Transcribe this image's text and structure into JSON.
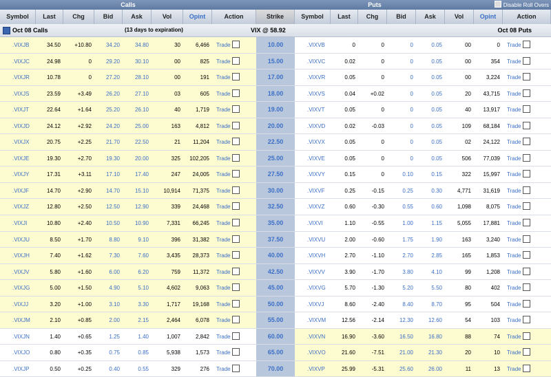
{
  "topbar": {
    "calls": "Calls",
    "puts": "Puts",
    "roll_label": "Disable Roll Overs"
  },
  "headers": {
    "calls": [
      "Symbol",
      "Last",
      "Chg",
      "Bid",
      "Ask",
      "Vol",
      "Opint",
      "Action"
    ],
    "strike": "Strike",
    "puts": [
      "Symbol",
      "Last",
      "Chg",
      "Bid",
      "Ask",
      "Vol",
      "Opint",
      "Action"
    ]
  },
  "banner": {
    "calls_label": "Oct 08 Calls",
    "expiration": "(13 days to expiration)",
    "underlying": "VIX @ 58.92",
    "puts_label": "Oct 08 Puts"
  },
  "trade_label": "Trade",
  "colors": {
    "in_the_money": "#fdfbd0",
    "strike_bg": "#b9c7dd",
    "link": "#3b6fc6"
  },
  "rows": [
    {
      "strike": "10.00",
      "call": [
        ".VIXJB",
        "34.50",
        "+10.80",
        "34.20",
        "34.80",
        "30",
        "6,466"
      ],
      "put": [
        ".VIXVB",
        "0",
        "0",
        "0",
        "0.05",
        "00",
        "0"
      ]
    },
    {
      "strike": "15.00",
      "call": [
        ".VIXJC",
        "24.98",
        "0",
        "29.20",
        "30.10",
        "00",
        "825"
      ],
      "put": [
        ".VIXVC",
        "0.02",
        "0",
        "0",
        "0.05",
        "00",
        "354"
      ]
    },
    {
      "strike": "17.00",
      "call": [
        ".VIXJR",
        "10.78",
        "0",
        "27.20",
        "28.10",
        "00",
        "191"
      ],
      "put": [
        ".VIXVR",
        "0.05",
        "0",
        "0",
        "0.05",
        "00",
        "3,224"
      ]
    },
    {
      "strike": "18.00",
      "call": [
        ".VIXJS",
        "23.59",
        "+3.49",
        "26.20",
        "27.10",
        "03",
        "605"
      ],
      "put": [
        ".VIXVS",
        "0.04",
        "+0.02",
        "0",
        "0.05",
        "20",
        "43,715"
      ]
    },
    {
      "strike": "19.00",
      "call": [
        ".VIXJT",
        "22.64",
        "+1.64",
        "25.20",
        "26.10",
        "40",
        "1,719"
      ],
      "put": [
        ".VIXVT",
        "0.05",
        "0",
        "0",
        "0.05",
        "40",
        "13,917"
      ]
    },
    {
      "strike": "20.00",
      "call": [
        ".VIXJD",
        "24.12",
        "+2.92",
        "24.20",
        "25.00",
        "163",
        "4,812"
      ],
      "put": [
        ".VIXVD",
        "0.02",
        "-0.03",
        "0",
        "0.05",
        "109",
        "68,184"
      ]
    },
    {
      "strike": "22.50",
      "call": [
        ".VIXJX",
        "20.75",
        "+2.25",
        "21.70",
        "22.50",
        "21",
        "11,204"
      ],
      "put": [
        ".VIXVX",
        "0.05",
        "0",
        "0",
        "0.05",
        "02",
        "24,122"
      ]
    },
    {
      "strike": "25.00",
      "call": [
        ".VIXJE",
        "19.30",
        "+2.70",
        "19.30",
        "20.00",
        "325",
        "102,205"
      ],
      "put": [
        ".VIXVE",
        "0.05",
        "0",
        "0",
        "0.05",
        "506",
        "77,039"
      ]
    },
    {
      "strike": "27.50",
      "call": [
        ".VIXJY",
        "17.31",
        "+3.11",
        "17.10",
        "17.40",
        "247",
        "24,005"
      ],
      "put": [
        ".VIXVY",
        "0.15",
        "0",
        "0.10",
        "0.15",
        "322",
        "15,997"
      ]
    },
    {
      "strike": "30.00",
      "call": [
        ".VIXJF",
        "14.70",
        "+2.90",
        "14.70",
        "15.10",
        "10,914",
        "71,375"
      ],
      "put": [
        ".VIXVF",
        "0.25",
        "-0.15",
        "0.25",
        "0.30",
        "4,771",
        "31,619"
      ]
    },
    {
      "strike": "32.50",
      "call": [
        ".VIXJZ",
        "12.80",
        "+2.50",
        "12.50",
        "12.90",
        "339",
        "24,468"
      ],
      "put": [
        ".VIXVZ",
        "0.60",
        "-0.30",
        "0.55",
        "0.60",
        "1,098",
        "8,075"
      ]
    },
    {
      "strike": "35.00",
      "call": [
        ".VIXJI",
        "10.80",
        "+2.40",
        "10.50",
        "10.90",
        "7,331",
        "66,245"
      ],
      "put": [
        ".VIXVI",
        "1.10",
        "-0.55",
        "1.00",
        "1.15",
        "5,055",
        "17,881"
      ]
    },
    {
      "strike": "37.50",
      "call": [
        ".VIXJU",
        "8.50",
        "+1.70",
        "8.80",
        "9.10",
        "396",
        "31,382"
      ],
      "put": [
        ".VIXVU",
        "2.00",
        "-0.60",
        "1.75",
        "1.90",
        "163",
        "3,240"
      ]
    },
    {
      "strike": "40.00",
      "call": [
        ".VIXJH",
        "7.40",
        "+1.62",
        "7.30",
        "7.60",
        "3,435",
        "28,373"
      ],
      "put": [
        ".VIXVH",
        "2.70",
        "-1.10",
        "2.70",
        "2.85",
        "165",
        "1,853"
      ]
    },
    {
      "strike": "42.50",
      "call": [
        ".VIXJV",
        "5.80",
        "+1.60",
        "6.00",
        "6.20",
        "759",
        "11,372"
      ],
      "put": [
        ".VIXVV",
        "3.90",
        "-1.70",
        "3.80",
        "4.10",
        "99",
        "1,208"
      ]
    },
    {
      "strike": "45.00",
      "call": [
        ".VIXJG",
        "5.00",
        "+1.50",
        "4.90",
        "5.10",
        "4,602",
        "9,063"
      ],
      "put": [
        ".VIXVG",
        "5.70",
        "-1.30",
        "5.20",
        "5.50",
        "80",
        "402"
      ]
    },
    {
      "strike": "50.00",
      "call": [
        ".VIXJJ",
        "3.20",
        "+1.00",
        "3.10",
        "3.30",
        "1,717",
        "19,168"
      ],
      "put": [
        ".VIXVJ",
        "8.60",
        "-2.40",
        "8.40",
        "8.70",
        "95",
        "504"
      ]
    },
    {
      "strike": "55.00",
      "call": [
        ".VIXJM",
        "2.10",
        "+0.85",
        "2.00",
        "2.15",
        "2,464",
        "6,078"
      ],
      "put": [
        ".VIXVM",
        "12.56",
        "-2.14",
        "12.30",
        "12.60",
        "54",
        "103"
      ]
    },
    {
      "strike": "60.00",
      "call": [
        ".VIXJN",
        "1.40",
        "+0.65",
        "1.25",
        "1.40",
        "1,007",
        "2,842"
      ],
      "put": [
        ".VIXVN",
        "16.90",
        "-3.60",
        "16.50",
        "16.80",
        "88",
        "74"
      ]
    },
    {
      "strike": "65.00",
      "call": [
        ".VIXJO",
        "0.80",
        "+0.35",
        "0.75",
        "0.85",
        "5,938",
        "1,573"
      ],
      "put": [
        ".VIXVO",
        "21.60",
        "-7.51",
        "21.00",
        "21.30",
        "20",
        "10"
      ]
    },
    {
      "strike": "70.00",
      "call": [
        ".VIXJP",
        "0.50",
        "+0.25",
        "0.40",
        "0.55",
        "329",
        "276"
      ],
      "put": [
        ".VIXVP",
        "25.99",
        "-5.31",
        "25.60",
        "26.00",
        "11",
        "13"
      ]
    }
  ]
}
